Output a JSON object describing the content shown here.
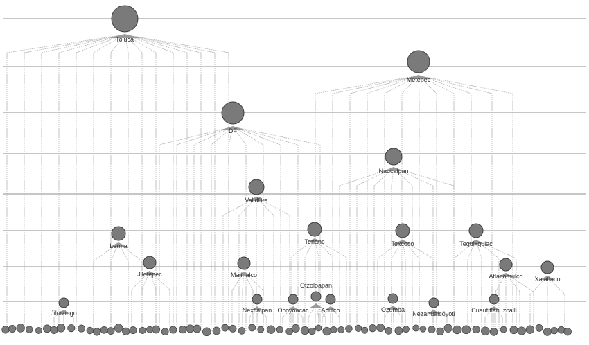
{
  "colors": {
    "node_fill": "#7a7a7a",
    "node_stroke": "#3c3c3c",
    "edge": "#b4b4b4",
    "level_line": "#8c8c8c",
    "label": "#333333"
  },
  "nodes": [
    {
      "id": "toluca",
      "label": "Toluca"
    },
    {
      "id": "metepec",
      "label": "Metepec"
    },
    {
      "id": "df",
      "label": "DF"
    },
    {
      "id": "naucalpan",
      "label": "Naucalpan"
    },
    {
      "id": "valldbra",
      "label": "ValldBra"
    },
    {
      "id": "lerma",
      "label": "Lerma"
    },
    {
      "id": "tenanc",
      "label": "Tenanc"
    },
    {
      "id": "texcoco",
      "label": "Texcoco"
    },
    {
      "id": "tequixquiac",
      "label": "Tequixquiac"
    },
    {
      "id": "jilotepec",
      "label": "Jilotepec"
    },
    {
      "id": "malinalco",
      "label": "Malinalco"
    },
    {
      "id": "atlacomulco",
      "label": "Atlacomulco"
    },
    {
      "id": "xalatlaco",
      "label": "Xalatlaco"
    },
    {
      "id": "otzoloapan",
      "label": "Otzoloapan"
    },
    {
      "id": "jilotzingo",
      "label": "Jilotzingo"
    },
    {
      "id": "nextlalpan",
      "label": "Nextlalpan"
    },
    {
      "id": "ocoyoacac",
      "label": "Ocoyoacac"
    },
    {
      "id": "aculco",
      "label": "Aculco"
    },
    {
      "id": "ozumba",
      "label": "Ozumba"
    },
    {
      "id": "nezahualcoyotl",
      "label": "Nezahualcóyotl"
    },
    {
      "id": "cuautitlan",
      "label": "Cuautitlán Izcalli"
    }
  ]
}
